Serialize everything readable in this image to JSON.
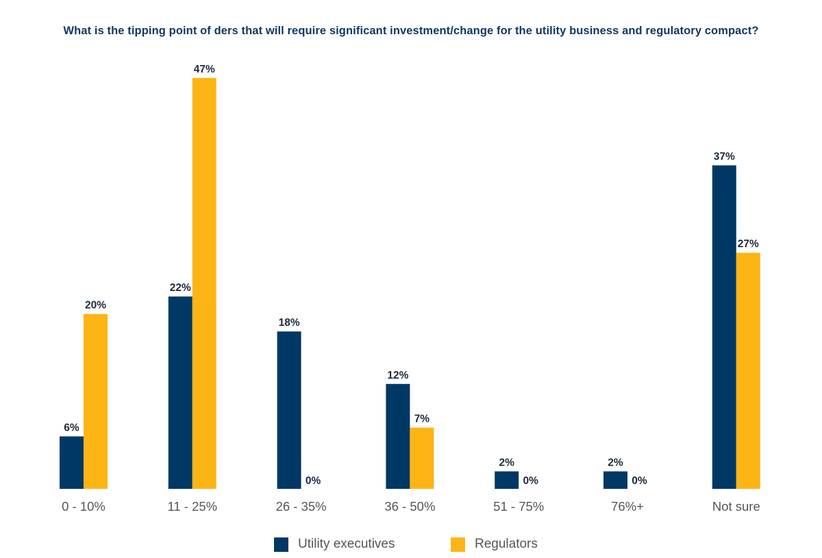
{
  "chart_data": {
    "type": "bar",
    "title": "What is the tipping point of ders that will require significant investment/change for the utility business and regulatory compact?",
    "xlabel": "",
    "ylabel": "",
    "ylim": [
      0,
      50
    ],
    "grid": false,
    "legend_position": "bottom",
    "categories": [
      "0 - 10%",
      "11 - 25%",
      "26 - 35%",
      "36 - 50%",
      "51 - 75%",
      "76%+",
      "Not sure"
    ],
    "series": [
      {
        "name": "Utility executives",
        "color": "#003865",
        "values": [
          6,
          22,
          18,
          12,
          2,
          2,
          37
        ],
        "labels": [
          "6%",
          "22%",
          "18%",
          "12%",
          "2%",
          "2%",
          "37%"
        ]
      },
      {
        "name": "Regulators",
        "color": "#fdb515",
        "values": [
          20,
          47,
          0,
          7,
          0,
          0,
          27
        ],
        "labels": [
          "20%",
          "47%",
          "0%",
          "7%",
          "0%",
          "0%",
          "27%"
        ]
      }
    ]
  }
}
